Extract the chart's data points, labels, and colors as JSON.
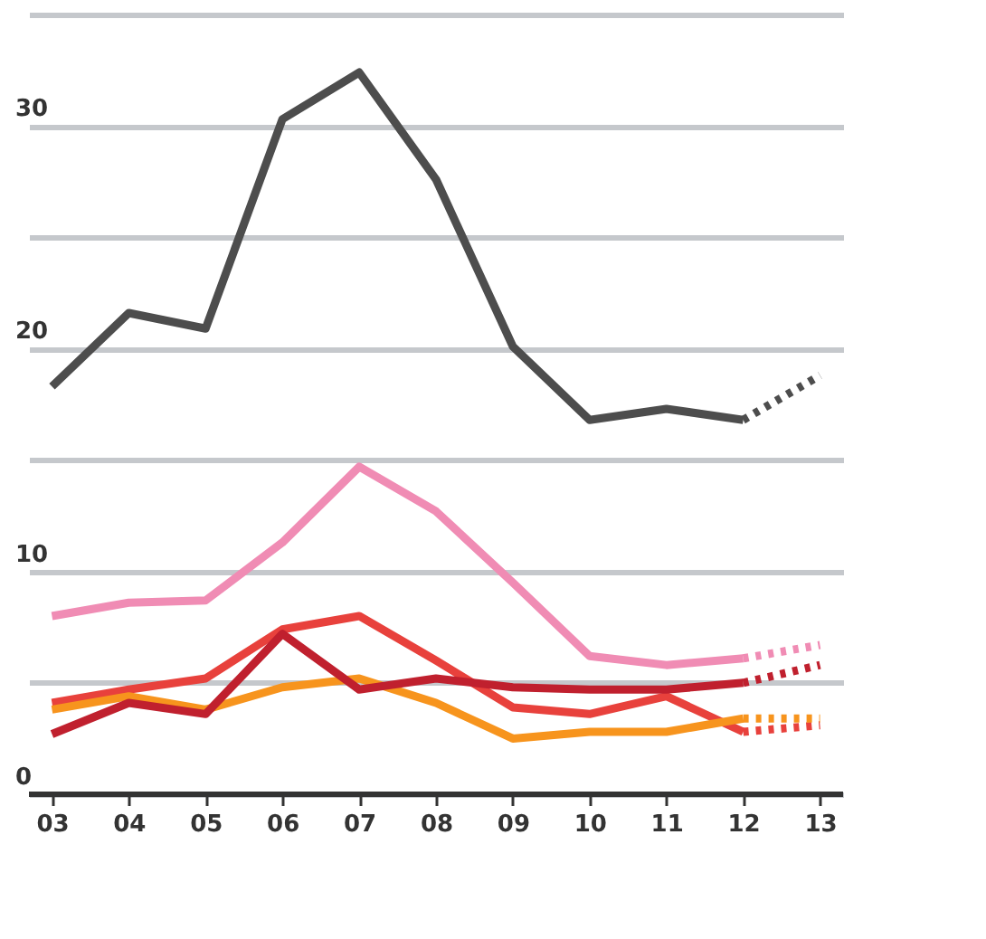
{
  "chart_data": {
    "type": "line",
    "categories": [
      "03",
      "04",
      "05",
      "06",
      "07",
      "08",
      "09",
      "10",
      "11",
      "12",
      "13"
    ],
    "ylim": [
      0,
      35
    ],
    "yticks": [
      0,
      {
        "value": 5,
        "label": null
      },
      10,
      {
        "value": 15,
        "label": null
      },
      20,
      {
        "value": 25,
        "label": null
      },
      30,
      {
        "value": 35,
        "label": null
      }
    ],
    "grid": "y",
    "marker": "none",
    "series": [
      {
        "color": "#4d4d4d",
        "line_style": "solid",
        "values": [
          18.3,
          21.6,
          20.9,
          30.3,
          32.4,
          27.6,
          20.1,
          16.8,
          17.3,
          16.8,
          null
        ]
      },
      {
        "color": "#4d4d4d",
        "line_style": "dotted",
        "values": [
          null,
          null,
          null,
          null,
          null,
          null,
          null,
          null,
          null,
          16.8,
          18.8
        ]
      },
      {
        "color": "#f08cb4",
        "line_style": "solid",
        "values": [
          8.0,
          8.6,
          8.7,
          11.3,
          14.7,
          12.7,
          9.5,
          6.2,
          5.8,
          6.1,
          null
        ]
      },
      {
        "color": "#f08cb4",
        "line_style": "dotted",
        "values": [
          null,
          null,
          null,
          null,
          null,
          null,
          null,
          null,
          null,
          6.1,
          6.7
        ]
      },
      {
        "color": "#e8413c",
        "line_style": "solid",
        "values": [
          4.1,
          4.7,
          5.2,
          7.4,
          8.0,
          6.0,
          3.9,
          3.6,
          4.4,
          2.8,
          null
        ]
      },
      {
        "color": "#e8413c",
        "line_style": "dotted",
        "values": [
          null,
          null,
          null,
          null,
          null,
          null,
          null,
          null,
          null,
          2.8,
          3.1
        ]
      },
      {
        "color": "#f7941d",
        "line_style": "solid",
        "values": [
          3.8,
          4.4,
          3.8,
          4.8,
          5.2,
          4.1,
          2.5,
          2.8,
          2.8,
          3.4,
          null
        ]
      },
      {
        "color": "#f7941d",
        "line_style": "dotted",
        "values": [
          null,
          null,
          null,
          null,
          null,
          null,
          null,
          null,
          null,
          3.4,
          3.4
        ]
      },
      {
        "color": "#c0202e",
        "line_style": "solid",
        "values": [
          2.7,
          4.1,
          3.6,
          7.2,
          4.7,
          5.2,
          4.8,
          4.7,
          4.7,
          5.0,
          null
        ]
      },
      {
        "color": "#c0202e",
        "line_style": "dotted",
        "values": [
          null,
          null,
          null,
          null,
          null,
          null,
          null,
          null,
          null,
          5.0,
          5.8
        ]
      }
    ]
  }
}
